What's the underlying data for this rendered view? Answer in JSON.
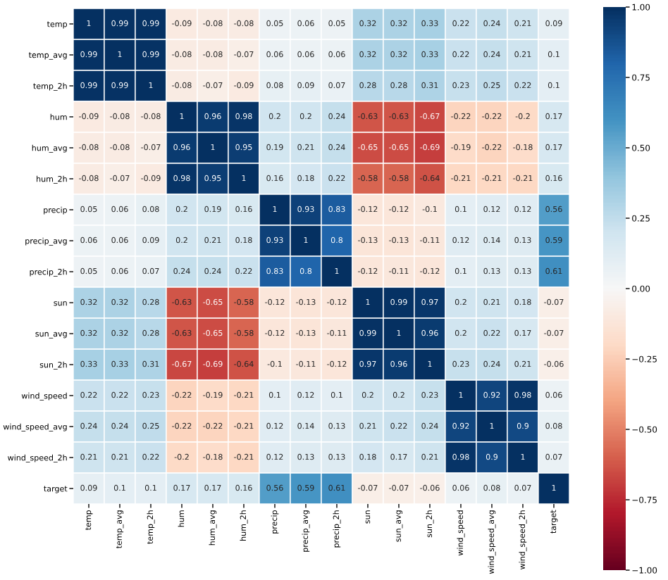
{
  "chart_data": {
    "type": "heatmap",
    "categories": [
      "temp",
      "temp_avg",
      "temp_2h",
      "hum",
      "hum_avg",
      "hum_2h",
      "precip",
      "precip_avg",
      "precip_2h",
      "sun",
      "sun_avg",
      "sun_2h",
      "wind_speed",
      "wind_speed_avg",
      "wind_speed_2h",
      "target"
    ],
    "y_categories": [
      "temp",
      "temp_avg",
      "temp_2h",
      "hum",
      "hum_avg",
      "hum_2h",
      "precip",
      "precip_avg",
      "precip_2h",
      "sun",
      "sun_avg",
      "sun_2h",
      "wind_speed",
      "wind_speed_avg",
      "wind_speed_2h",
      "target"
    ],
    "cells": [
      [
        1,
        0.99,
        0.99,
        -0.09,
        -0.08,
        -0.08,
        0.05,
        0.06,
        0.05,
        0.32,
        0.32,
        0.33,
        0.22,
        0.24,
        0.21,
        0.09
      ],
      [
        0.99,
        1,
        0.99,
        -0.08,
        -0.08,
        -0.07,
        0.06,
        0.06,
        0.06,
        0.32,
        0.32,
        0.33,
        0.22,
        0.24,
        0.21,
        0.1
      ],
      [
        0.99,
        0.99,
        1,
        -0.08,
        -0.07,
        -0.09,
        0.08,
        0.09,
        0.07,
        0.28,
        0.28,
        0.31,
        0.23,
        0.25,
        0.22,
        0.1
      ],
      [
        -0.09,
        -0.08,
        -0.08,
        1,
        0.96,
        0.98,
        0.2,
        0.2,
        0.24,
        -0.63,
        -0.63,
        -0.67,
        -0.22,
        -0.22,
        -0.2,
        0.17
      ],
      [
        -0.08,
        -0.08,
        -0.07,
        0.96,
        1,
        0.95,
        0.19,
        0.21,
        0.24,
        -0.65,
        -0.65,
        -0.69,
        -0.19,
        -0.22,
        -0.18,
        0.17
      ],
      [
        -0.08,
        -0.07,
        -0.09,
        0.98,
        0.95,
        1,
        0.16,
        0.18,
        0.22,
        -0.58,
        -0.58,
        -0.64,
        -0.21,
        -0.21,
        -0.21,
        0.16
      ],
      [
        0.05,
        0.06,
        0.08,
        0.2,
        0.19,
        0.16,
        1,
        0.93,
        0.83,
        -0.12,
        -0.12,
        -0.1,
        0.1,
        0.12,
        0.12,
        0.56
      ],
      [
        0.06,
        0.06,
        0.09,
        0.2,
        0.21,
        0.18,
        0.93,
        1,
        0.8,
        -0.13,
        -0.13,
        -0.11,
        0.12,
        0.14,
        0.13,
        0.59
      ],
      [
        0.05,
        0.06,
        0.07,
        0.24,
        0.24,
        0.22,
        0.83,
        0.8,
        1,
        -0.12,
        -0.11,
        -0.12,
        0.1,
        0.13,
        0.13,
        0.61
      ],
      [
        0.32,
        0.32,
        0.28,
        -0.63,
        -0.65,
        -0.58,
        -0.12,
        -0.13,
        -0.12,
        1,
        0.99,
        0.97,
        0.2,
        0.21,
        0.18,
        -0.07
      ],
      [
        0.32,
        0.32,
        0.28,
        -0.63,
        -0.65,
        -0.58,
        -0.12,
        -0.13,
        -0.11,
        0.99,
        1,
        0.96,
        0.2,
        0.22,
        0.17,
        -0.07
      ],
      [
        0.33,
        0.33,
        0.31,
        -0.67,
        -0.69,
        -0.64,
        -0.1,
        -0.11,
        -0.12,
        0.97,
        0.96,
        1,
        0.23,
        0.24,
        0.21,
        -0.06
      ],
      [
        0.22,
        0.22,
        0.23,
        -0.22,
        -0.19,
        -0.21,
        0.1,
        0.12,
        0.1,
        0.2,
        0.2,
        0.23,
        1,
        0.92,
        0.98,
        0.06
      ],
      [
        0.24,
        0.24,
        0.25,
        -0.22,
        -0.22,
        -0.21,
        0.12,
        0.14,
        0.13,
        0.21,
        0.22,
        0.24,
        0.92,
        1,
        0.9,
        0.08
      ],
      [
        0.21,
        0.21,
        0.22,
        -0.2,
        -0.18,
        -0.21,
        0.12,
        0.13,
        0.13,
        0.18,
        0.17,
        0.21,
        0.98,
        0.9,
        1,
        0.07
      ],
      [
        0.09,
        0.1,
        0.1,
        0.17,
        0.17,
        0.16,
        0.56,
        0.59,
        0.61,
        -0.07,
        -0.07,
        -0.06,
        0.06,
        0.08,
        0.07,
        1
      ]
    ],
    "clim": [
      -1,
      1
    ],
    "cticks": [
      {
        "value": -1,
        "label": "−1.00"
      },
      {
        "value": -0.75,
        "label": "−0.75"
      },
      {
        "value": -0.5,
        "label": "−0.50"
      },
      {
        "value": -0.25,
        "label": "−0.25"
      },
      {
        "value": 0,
        "label": "0.00"
      },
      {
        "value": 0.25,
        "label": "0.25"
      },
      {
        "value": 0.5,
        "label": "0.50"
      },
      {
        "value": 0.75,
        "label": "0.75"
      },
      {
        "value": 1,
        "label": "1.00"
      }
    ],
    "data_labels": true
  }
}
